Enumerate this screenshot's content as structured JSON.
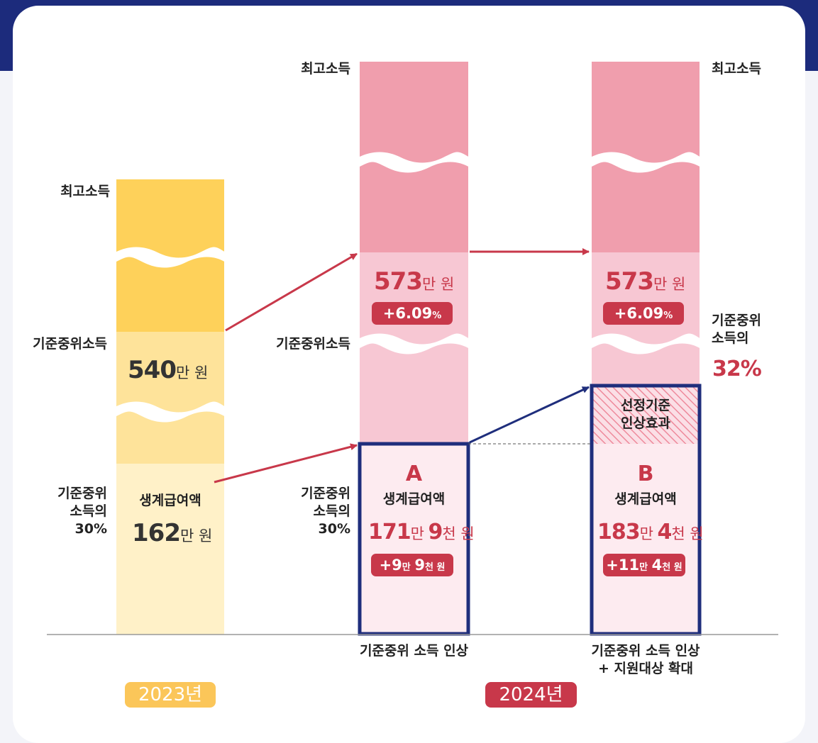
{
  "colors": {
    "header": "#1c2b7c",
    "yellow_top": "#fed15a",
    "yellow_mid": "#fee39a",
    "yellow_low": "#fff1c8",
    "pink_top": "#f09ead",
    "pink_mid": "#f7c7d3",
    "pink_low": "#fdebf0",
    "accent_red": "#c8384a",
    "navy": "#1f2e7c",
    "year_2023": "#fbc659",
    "year_2024": "#c8384a"
  },
  "chart_data": {
    "type": "bar",
    "title": "",
    "categories": [
      "2023년",
      "2024년 (A)",
      "2024년 (B)"
    ],
    "series": [
      {
        "name": "기준중위소득 (만 원)",
        "values": [
          540,
          573,
          573
        ]
      },
      {
        "name": "생계급여액 (만 원)",
        "values": [
          162,
          171.9,
          183.4
        ]
      }
    ],
    "benefit_rate": [
      "30%",
      "30%",
      "32%"
    ],
    "median_increase": "+6.09%",
    "legend": []
  },
  "labels": {
    "max_income": "최고소득",
    "median_income": "기준중위소득",
    "median_income_part1": "기준중위",
    "median_income_part2": "소득의",
    "pct30": "30%",
    "pct32": "32%",
    "benefit": "생계급여액",
    "selection_effect_1": "선정기준",
    "selection_effect_2": "인상효과"
  },
  "col2023": {
    "median_value": "540",
    "median_unit": "만 원",
    "benefit_value": "162",
    "benefit_unit": "만 원",
    "year": "2023년"
  },
  "colA": {
    "median_value": "573",
    "median_unit": "만 원",
    "median_change_num": "+6.09",
    "median_change_unit": "%",
    "letter": "A",
    "benefit_v1": "171",
    "benefit_u1": "만",
    "benefit_v2": "9",
    "benefit_u2": "천 원",
    "inc_v1": "+9",
    "inc_u1": "만",
    "inc_v2": "9",
    "inc_u2": "천 원",
    "caption": "기준중위 소득 인상"
  },
  "colB": {
    "median_value": "573",
    "median_unit": "만 원",
    "median_change_num": "+6.09",
    "median_change_unit": "%",
    "letter": "B",
    "benefit_v1": "183",
    "benefit_u1": "만",
    "benefit_v2": "4",
    "benefit_u2": "천 원",
    "inc_v1": "+11",
    "inc_u1": "만",
    "inc_v2": "4",
    "inc_u2": "천 원",
    "caption_1": "기준중위 소득 인상",
    "caption_2": "+ 지원대상 확대"
  },
  "year2024": "2024년"
}
